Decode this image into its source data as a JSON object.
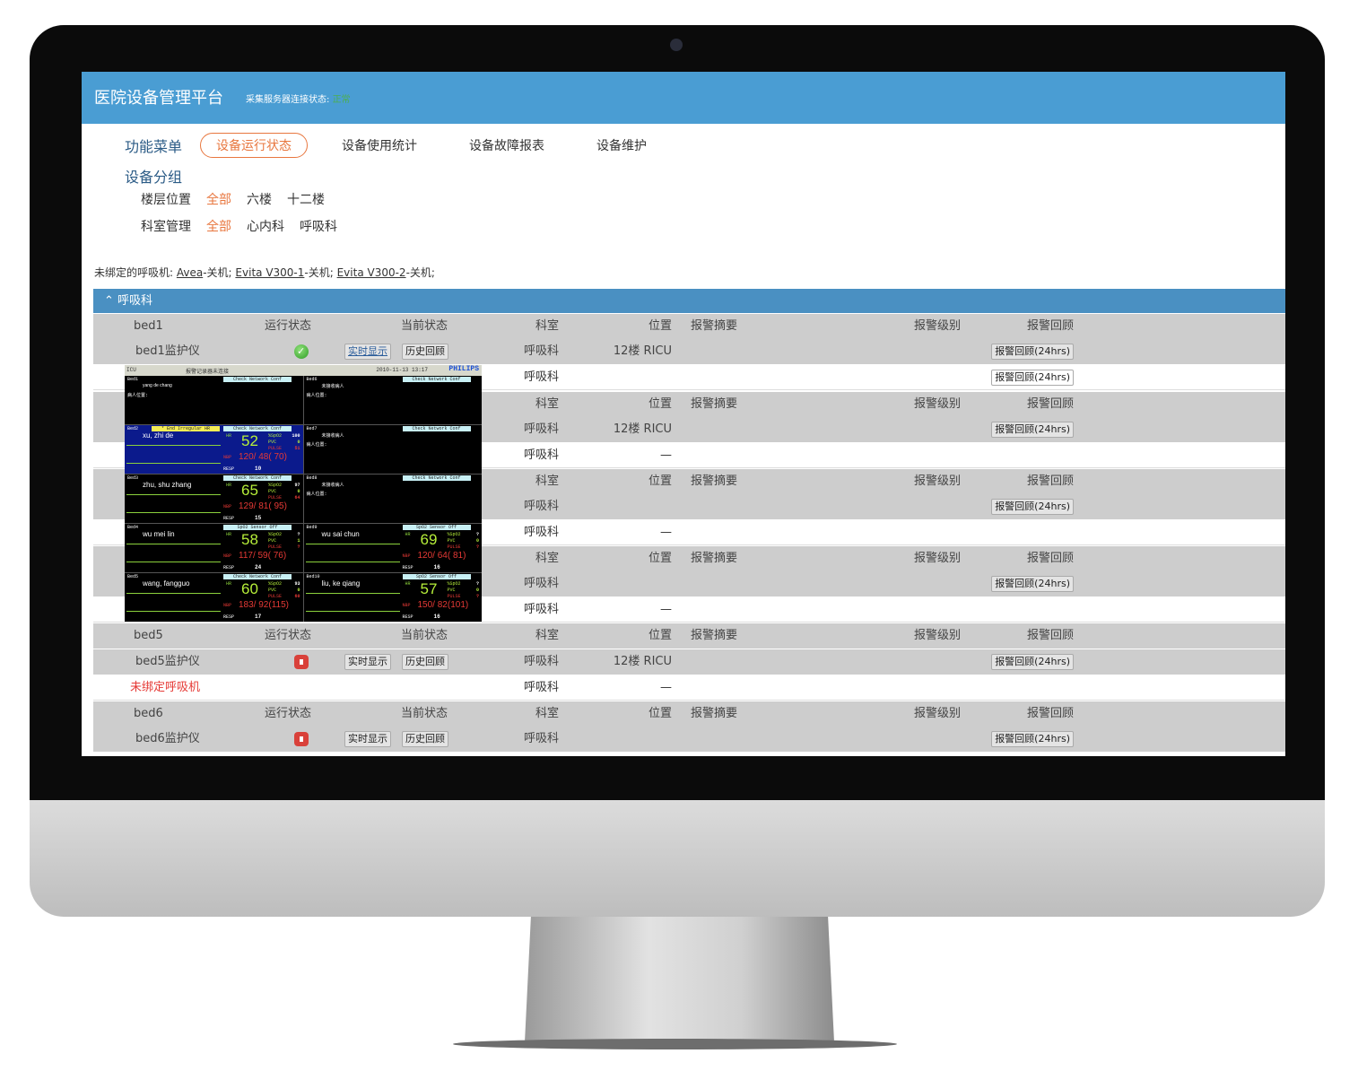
{
  "header": {
    "title": "医院设备管理平台",
    "conn_label": "采集服务器连接状态:",
    "conn_value": "正常",
    "conn_color": "#4caf50"
  },
  "nav": {
    "label": "功能菜单",
    "items": [
      "设备运行状态",
      "设备使用统计",
      "设备故障报表",
      "设备维护"
    ],
    "active": 0
  },
  "group": {
    "title": "设备分组",
    "floor": {
      "label": "楼层位置",
      "options": [
        "全部",
        "六楼",
        "十二楼"
      ]
    },
    "dept": {
      "label": "科室管理",
      "options": [
        "全部",
        "心内科",
        "呼吸科"
      ]
    }
  },
  "unbound": {
    "prefix": "未绑定的呼吸机:",
    "items": [
      {
        "name": "Avea",
        "state": "-关机;"
      },
      {
        "name": "Evita V300-1",
        "state": "-关机;"
      },
      {
        "name": "Evita V300-2",
        "state": "-关机;"
      }
    ]
  },
  "section": {
    "title": "呼吸科",
    "collapse_icon": "chevron-up-icon"
  },
  "columns": {
    "run_state": "运行状态",
    "cur_state": "当前状态",
    "dept": "科室",
    "location": "位置",
    "alarm_summary": "报警摘要",
    "alarm_level": "报警级别",
    "alarm_review": "报警回顾"
  },
  "buttons": {
    "realtime": "实时显示",
    "history": "历史回顾",
    "alarm_review": "报警回顾(24hrs)"
  },
  "beds": [
    {
      "bed": "bed1",
      "device": "bed1监护仪",
      "status": "running",
      "dept": "呼吸科",
      "location": "12楼 RICU",
      "vent_dept": "呼吸科",
      "vent_location": "",
      "vent_button": true
    },
    {
      "bed": "",
      "device": "",
      "status": "",
      "dept": "呼吸科",
      "location": "12楼 RICU",
      "vent_dept": "呼吸科",
      "vent_location": "—"
    },
    {
      "bed": "",
      "device": "",
      "status": "",
      "dept": "呼吸科",
      "location": "",
      "vent_dept": "呼吸科",
      "vent_location": "—"
    },
    {
      "bed": "",
      "device": "",
      "status": "",
      "dept": "呼吸科",
      "location": "",
      "vent_dept": "呼吸科",
      "vent_location": "—"
    },
    {
      "bed": "bed5",
      "device": "bed5监护仪",
      "status": "stopped",
      "dept": "呼吸科",
      "location": "12楼 RICU",
      "vent_label": "未绑定呼吸机",
      "vent_dept": "呼吸科",
      "vent_location": "—"
    },
    {
      "bed": "bed6",
      "device": "bed6监护仪",
      "status": "stopped",
      "dept": "呼吸科",
      "location": ""
    }
  ],
  "monitor": {
    "top_left": "ICU",
    "top_sub": "报警记录器未连接",
    "datetime": "2010-11-13 13:17",
    "brand": "PHILIPS",
    "cells": [
      {
        "bed": "Bed1",
        "net": "Check Network Conf",
        "name": "yang de chang",
        "loc": "病人位置:"
      },
      {
        "bed": "Bed6",
        "net": "Check Network Conf",
        "name": "未接收病人",
        "loc": "病人位置:"
      },
      {
        "bed": "Bed2",
        "alarm": "* End Irregular HR",
        "net": "Check Network Conf",
        "name": "xu, zhi de",
        "hr": "52",
        "spo2": "100",
        "pvc": "0",
        "pulse": "51",
        "nbp": "120/ 48( 70)",
        "resp": "10",
        "selected": true
      },
      {
        "bed": "Bed7",
        "net": "Check Network Conf",
        "name": "未接收病人",
        "loc": "病人位置:"
      },
      {
        "bed": "Bed3",
        "net": "Check Network Conf",
        "name": "zhu, shu zhang",
        "hr": "65",
        "spo2": "97",
        "pvc": "0",
        "pulse": "64",
        "nbp": "129/ 81( 95)",
        "resp": "15"
      },
      {
        "bed": "Bed8",
        "net": "Check Network Conf",
        "name": "未接收病人",
        "loc": "病人位置:"
      },
      {
        "bed": "Bed4",
        "net": "SpO2  Sensor Off",
        "name": "wu mei lin",
        "hr": "58",
        "spo2": "?",
        "pvc": "1",
        "pulse": "?",
        "nbp": "117/ 59( 76)",
        "resp": "24"
      },
      {
        "bed": "Bed9",
        "net": "SpO2  Sensor Off",
        "name": "wu sai chun",
        "hr": "69",
        "spo2": "?",
        "pvc": "0",
        "pulse": "?",
        "nbp": "120/ 64( 81)",
        "resp": "16"
      },
      {
        "bed": "Bed5",
        "net": "Check Network Conf",
        "name": "wang, fangguo",
        "hr": "60",
        "spo2": "93",
        "pvc": "0",
        "pulse": "60",
        "nbp": "183/ 92(115)",
        "resp": "17"
      },
      {
        "bed": "Bed10",
        "net": "SpO2  Sensor Off",
        "name": "liu, ke qiang",
        "hr": "57",
        "spo2": "?",
        "pvc": "0",
        "pulse": "?",
        "nbp": "150/ 82(101)",
        "resp": "16"
      }
    ],
    "labels": {
      "hr": "HR",
      "spo2": "%SpO2",
      "pvc": "PVC",
      "pulse": "PULSE",
      "nbp": "NBP",
      "resp": "RESP"
    }
  }
}
